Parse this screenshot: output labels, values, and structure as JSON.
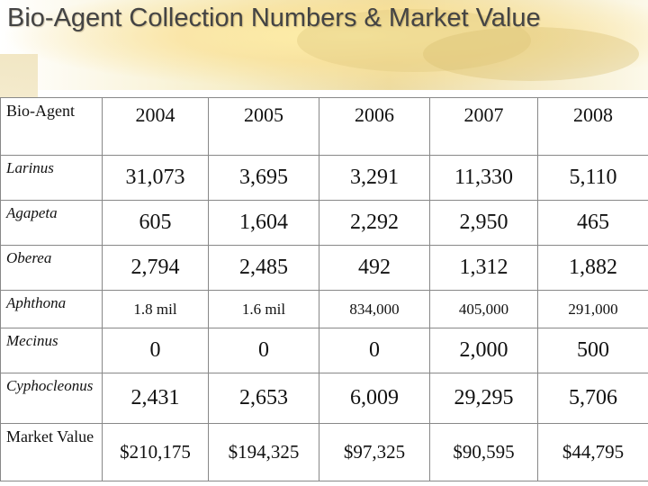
{
  "title": "Bio-Agent Collection Numbers & Market Value",
  "table": {
    "header_label": "Bio-Agent",
    "years": [
      "2004",
      "2005",
      "2006",
      "2007",
      "2008"
    ],
    "rows": [
      {
        "label": "Larinus",
        "values": [
          "31,073",
          "3,695",
          "3,291",
          "11,330",
          "5,110"
        ]
      },
      {
        "label": "Agapeta",
        "values": [
          "605",
          "1,604",
          "2,292",
          "2,950",
          "465"
        ]
      },
      {
        "label": "Oberea",
        "values": [
          "2,794",
          "2,485",
          "492",
          "1,312",
          "1,882"
        ]
      },
      {
        "label": "Aphthona",
        "values": [
          "1.8 mil",
          "1.6 mil",
          "834,000",
          "405,000",
          "291,000"
        ]
      },
      {
        "label": "Mecinus",
        "values": [
          "0",
          "0",
          "0",
          "2,000",
          "500"
        ]
      },
      {
        "label": "Cyphocleonus",
        "values": [
          "2,431",
          "2,653",
          "6,009",
          "29,295",
          "5,706"
        ]
      },
      {
        "label": "Market Value",
        "values": [
          "$210,175",
          "$194,325",
          "$97,325",
          "$90,595",
          "$44,795"
        ]
      }
    ]
  }
}
